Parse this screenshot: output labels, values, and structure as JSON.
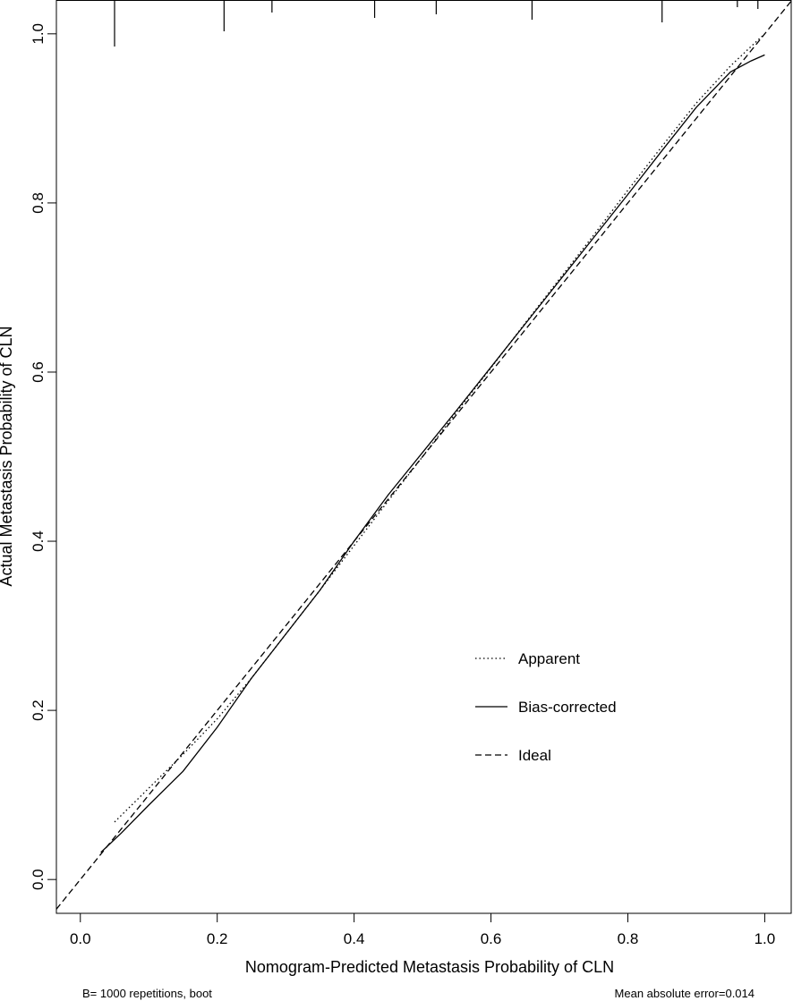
{
  "chart_data": {
    "type": "line",
    "xlabel": "Nomogram-Predicted Metastasis Probability of CLN",
    "ylabel": "Actual Metastasis Probability of CLN",
    "xlim": [
      -0.035,
      1.04
    ],
    "ylim": [
      -0.04,
      1.04
    ],
    "x_ticks": [
      0.0,
      0.2,
      0.4,
      0.6,
      0.8,
      1.0
    ],
    "y_ticks": [
      0.0,
      0.2,
      0.4,
      0.6,
      0.8,
      1.0
    ],
    "x_tick_labels": [
      "0.0",
      "0.2",
      "0.4",
      "0.6",
      "0.8",
      "1.0"
    ],
    "y_tick_labels": [
      "0.0",
      "0.2",
      "0.4",
      "0.6",
      "0.8",
      "1.0"
    ],
    "grid": false,
    "legend_position": "bottom-right",
    "series": [
      {
        "name": "Apparent",
        "line_style": "dotted",
        "x": [
          0.05,
          0.1,
          0.15,
          0.2,
          0.25,
          0.3,
          0.35,
          0.4,
          0.45,
          0.5,
          0.55,
          0.6,
          0.65,
          0.7,
          0.75,
          0.8,
          0.85,
          0.9,
          0.95,
          0.98,
          1.0
        ],
        "y": [
          0.068,
          0.108,
          0.148,
          0.19,
          0.238,
          0.29,
          0.342,
          0.395,
          0.448,
          0.5,
          0.553,
          0.605,
          0.658,
          0.71,
          0.762,
          0.815,
          0.867,
          0.918,
          0.962,
          0.985,
          1.0
        ]
      },
      {
        "name": "Bias-corrected",
        "line_style": "solid",
        "x": [
          0.03,
          0.06,
          0.1,
          0.15,
          0.2,
          0.25,
          0.3,
          0.35,
          0.4,
          0.45,
          0.5,
          0.55,
          0.6,
          0.65,
          0.7,
          0.75,
          0.8,
          0.85,
          0.9,
          0.95,
          0.98,
          1.0
        ],
        "y": [
          0.032,
          0.055,
          0.088,
          0.128,
          0.18,
          0.238,
          0.29,
          0.342,
          0.4,
          0.455,
          0.505,
          0.555,
          0.606,
          0.657,
          0.708,
          0.759,
          0.81,
          0.862,
          0.913,
          0.955,
          0.968,
          0.975
        ]
      },
      {
        "name": "Ideal",
        "line_style": "dashed",
        "x": [
          -0.035,
          1.04
        ],
        "y": [
          -0.035,
          1.04
        ]
      }
    ],
    "rug_ticks_top": [
      0.05,
      0.21,
      0.28,
      0.43,
      0.52,
      0.66,
      0.85,
      0.96,
      0.99
    ],
    "footnote_left": "B= 1000 repetitions, boot",
    "footnote_right": "Mean absolute error=0.014"
  }
}
